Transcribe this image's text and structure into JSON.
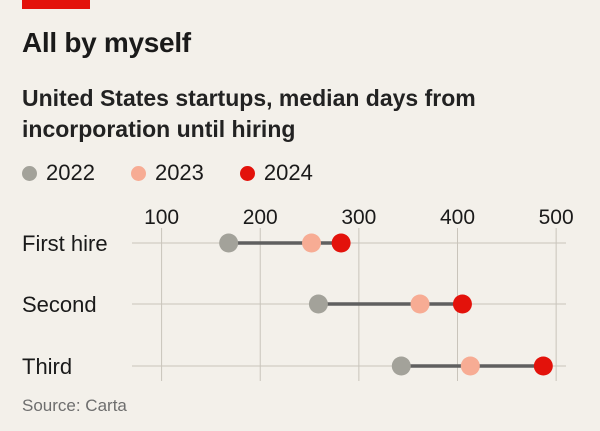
{
  "title": "All by myself",
  "subtitle": "United States startups, median days from incorporation until hiring",
  "source": "Source: Carta",
  "colors": {
    "brand_red": "#e3120b",
    "gridline": "#c9c4bb",
    "connector": "#5f5f5f",
    "background": "#f3f0ea"
  },
  "legend": [
    {
      "name": "2022",
      "color": "#a3a29a"
    },
    {
      "name": "2023",
      "color": "#f7ac94"
    },
    {
      "name": "2024",
      "color": "#e3120b"
    }
  ],
  "chart_data": {
    "type": "scatter",
    "subtype": "dumbbell",
    "categories": [
      "First hire",
      "Second",
      "Third"
    ],
    "series": [
      {
        "name": "2022",
        "values": [
          168,
          259,
          343
        ]
      },
      {
        "name": "2023",
        "values": [
          252,
          362,
          413
        ]
      },
      {
        "name": "2024",
        "values": [
          282,
          405,
          487
        ]
      }
    ],
    "xlim": [
      70,
      510
    ],
    "xticks": [
      100,
      200,
      300,
      400,
      500
    ],
    "xtick_position": "top",
    "grid": true,
    "legend_position": "top-left"
  }
}
